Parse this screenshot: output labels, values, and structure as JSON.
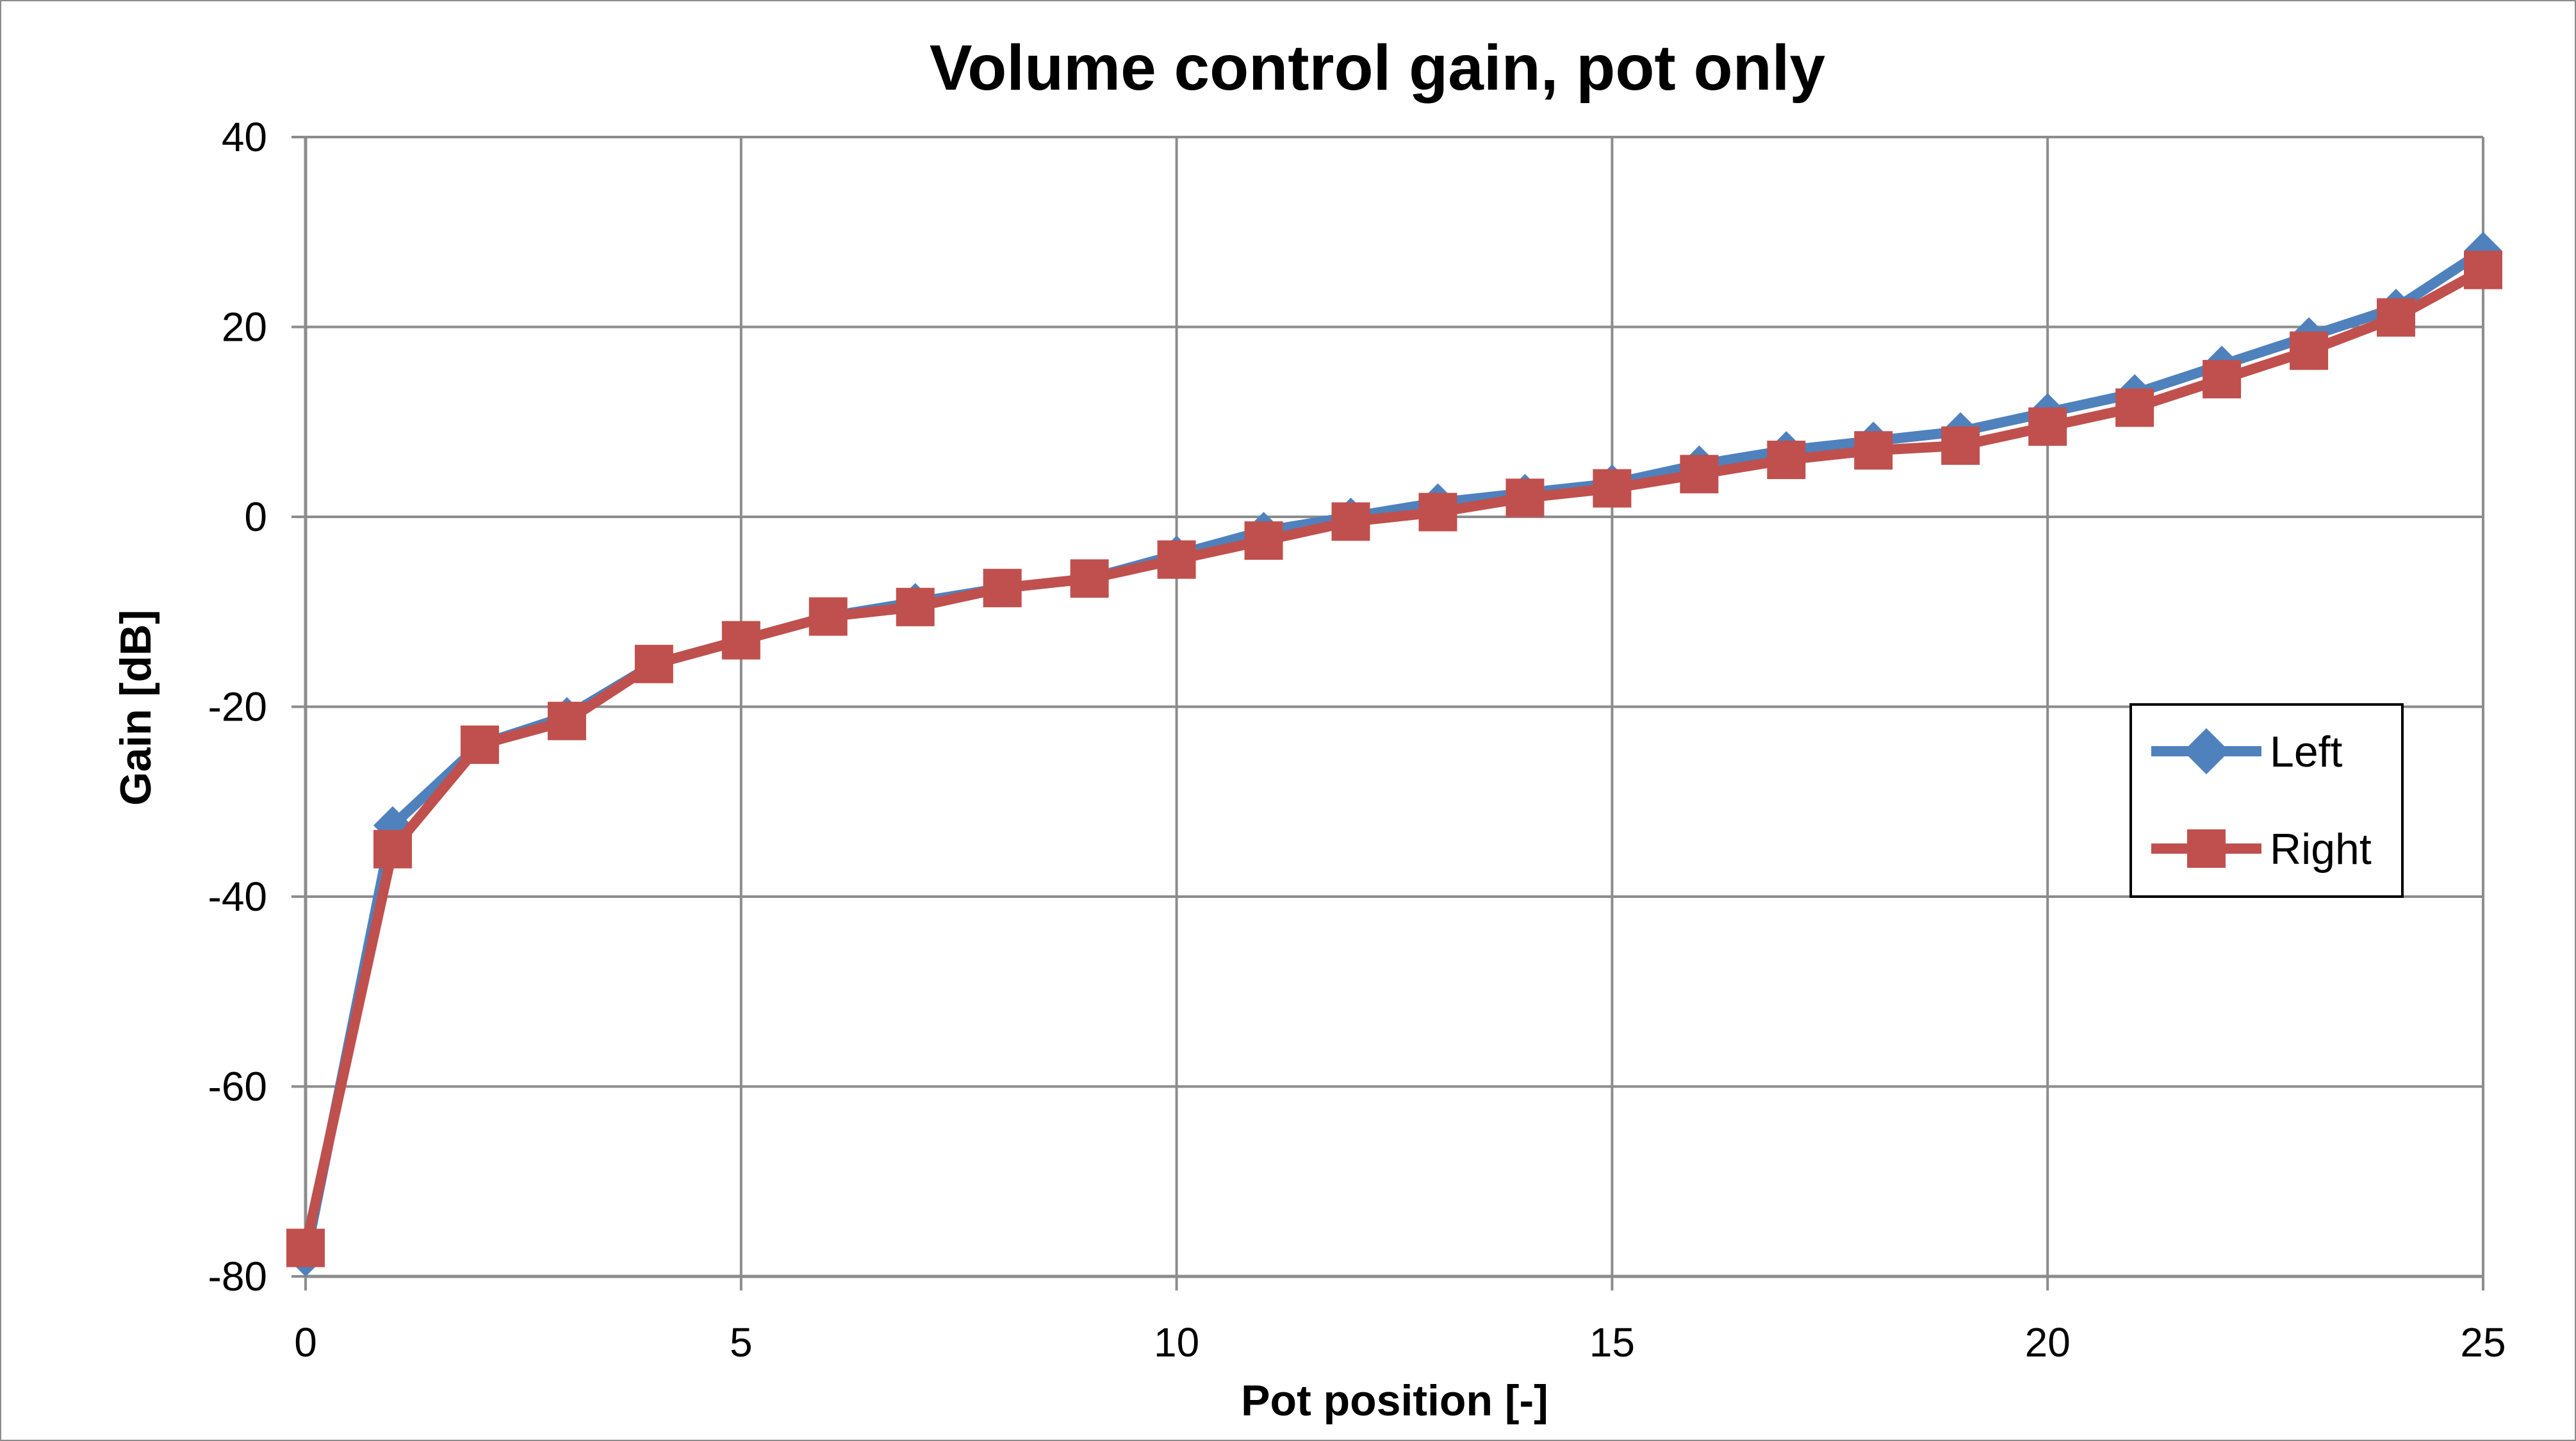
{
  "chart_data": {
    "type": "line",
    "title": "Volume control gain, pot only",
    "xlabel": "Pot position [-]",
    "ylabel": "Gain [dB]",
    "xlim": [
      0,
      25
    ],
    "ylim": [
      -80,
      40
    ],
    "xticks": [
      0,
      5,
      10,
      15,
      20,
      25
    ],
    "yticks": [
      -80,
      -60,
      -40,
      -20,
      0,
      20,
      40
    ],
    "grid": true,
    "legend_position": "right",
    "x": [
      0,
      1,
      2,
      3,
      4,
      5,
      6,
      7,
      8,
      9,
      10,
      11,
      12,
      13,
      14,
      15,
      16,
      17,
      18,
      19,
      20,
      21,
      22,
      23,
      24,
      25
    ],
    "series": [
      {
        "name": "Left",
        "color": "#4f81bd",
        "marker": "diamond",
        "values": [
          -78,
          -32.5,
          -24,
          -21,
          -15.5,
          -13,
          -10.5,
          -9,
          -7.5,
          -6.5,
          -4,
          -1.5,
          0,
          1.5,
          2.5,
          3.5,
          5.5,
          7,
          8,
          9,
          11,
          13,
          16,
          19,
          22,
          28
        ]
      },
      {
        "name": "Right",
        "color": "#c0504d",
        "marker": "square",
        "values": [
          -77,
          -35,
          -24,
          -21.5,
          -15.5,
          -13,
          -10.5,
          -9.5,
          -7.5,
          -6.5,
          -4.5,
          -2.5,
          -0.5,
          0.5,
          2,
          3,
          4.5,
          6,
          7,
          7.5,
          9.5,
          11.5,
          14.5,
          17.5,
          21,
          26
        ]
      }
    ]
  }
}
